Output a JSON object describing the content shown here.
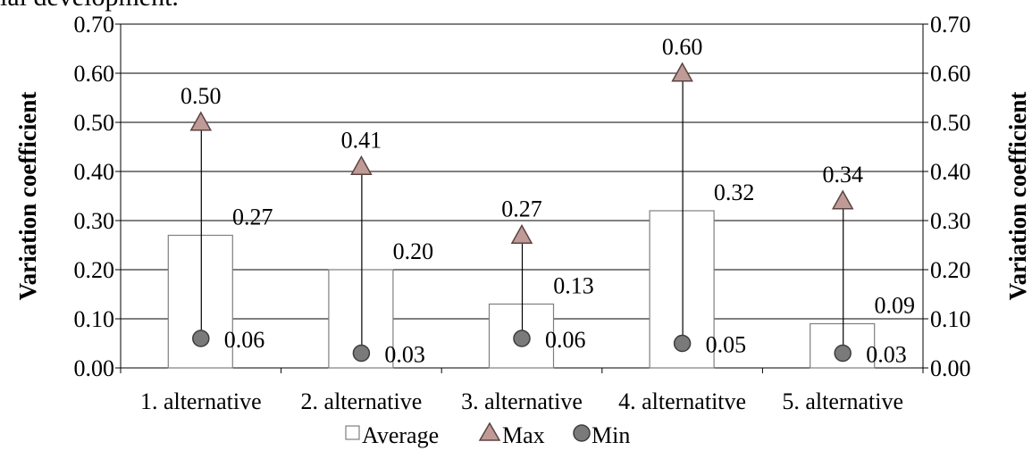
{
  "page_fragment_top": "ial development.",
  "chart_data": {
    "type": "bar",
    "categories": [
      "1.  alternative",
      "2. alternative",
      "3. alternative",
      "4. alternatitve",
      "5. alternative"
    ],
    "series": [
      {
        "name": "Average",
        "kind": "bar",
        "values": [
          0.27,
          0.2,
          0.13,
          0.32,
          0.09
        ],
        "labels": [
          "0.27",
          "0.20",
          "0.13",
          "0.32",
          "0.09"
        ],
        "color": "#ffffff",
        "stroke": "#7f7f7f"
      },
      {
        "name": "Max",
        "kind": "marker-triangle",
        "values": [
          0.5,
          0.41,
          0.27,
          0.6,
          0.34
        ],
        "labels": [
          "0.50",
          "0.41",
          "0.27",
          "0.60",
          "0.34"
        ],
        "color": "#c09a96",
        "stroke": "#5a4442"
      },
      {
        "name": "Min",
        "kind": "marker-circle",
        "values": [
          0.06,
          0.03,
          0.06,
          0.05,
          0.03
        ],
        "labels": [
          "0.06",
          "0.03",
          "0.06",
          "0.05",
          "0.03"
        ],
        "color": "#7a7a7a",
        "stroke": "#3d3d3d"
      }
    ],
    "high_low_lines": true,
    "ylabel_left": "Variation coefficient",
    "ylabel_right": "Variation coefficient",
    "ylim": [
      0,
      0.7
    ],
    "yticks": [
      "0.00",
      "0.10",
      "0.20",
      "0.30",
      "0.40",
      "0.50",
      "0.60",
      "0.70"
    ],
    "ytick_values": [
      0,
      0.1,
      0.2,
      0.3,
      0.4,
      0.5,
      0.6,
      0.7
    ],
    "grid": true,
    "legend_position": "bottom",
    "legend": [
      "Average",
      "Max",
      "Min"
    ]
  }
}
